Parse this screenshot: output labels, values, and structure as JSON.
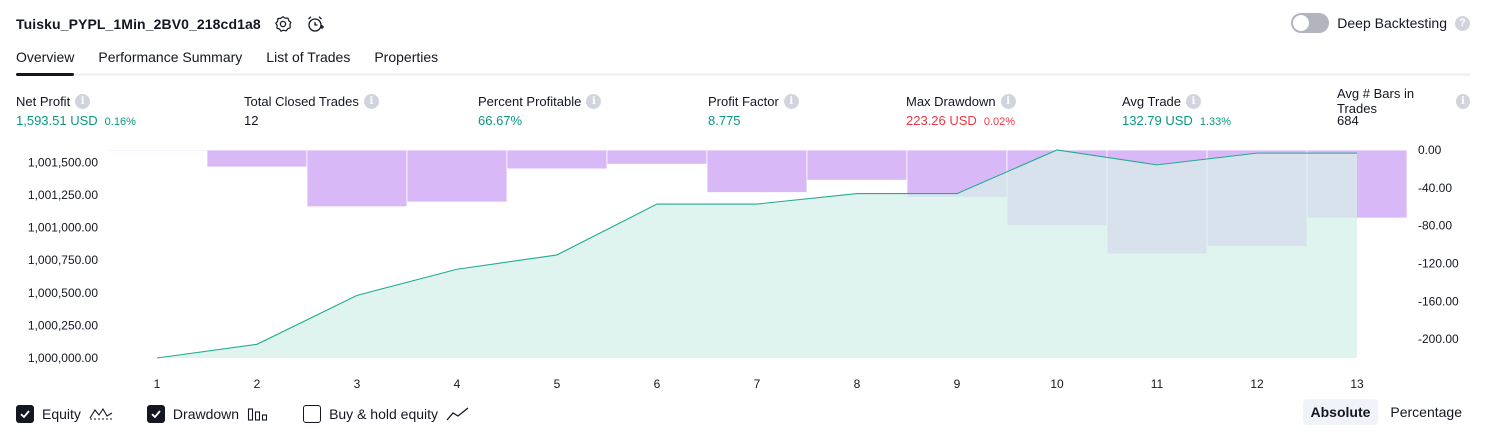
{
  "header": {
    "title": "Tuisku_PYPL_1Min_2BV0_218cd1a8",
    "icons": [
      "gear-icon",
      "alarm-add-icon"
    ]
  },
  "deep_backtesting": {
    "label": "Deep Backtesting",
    "enabled": false,
    "help": "?"
  },
  "tabs": [
    {
      "label": "Overview",
      "active": true
    },
    {
      "label": "Performance Summary",
      "active": false
    },
    {
      "label": "List of Trades",
      "active": false
    },
    {
      "label": "Properties",
      "active": false
    }
  ],
  "metrics": [
    {
      "label": "Net Profit",
      "value": "1,593.51 USD",
      "sub": "0.16%",
      "tone": "pos"
    },
    {
      "label": "Total Closed Trades",
      "value": "12",
      "sub": "",
      "tone": "neutral"
    },
    {
      "label": "Percent Profitable",
      "value": "66.67%",
      "sub": "",
      "tone": "pos"
    },
    {
      "label": "Profit Factor",
      "value": "8.775",
      "sub": "",
      "tone": "pos"
    },
    {
      "label": "Max Drawdown",
      "value": "223.26 USD",
      "sub": "0.02%",
      "tone": "neg"
    },
    {
      "label": "Avg Trade",
      "value": "132.79 USD",
      "sub": "1.33%",
      "tone": "pos"
    },
    {
      "label": "Avg # Bars in Trades",
      "value": "684",
      "sub": "",
      "tone": "neutral"
    }
  ],
  "chart_data": {
    "type": "line",
    "x": [
      1,
      2,
      3,
      4,
      5,
      6,
      7,
      8,
      9,
      10,
      11,
      12,
      13
    ],
    "series": [
      {
        "type": "area",
        "axis": "left",
        "values": [
          1000000,
          1000105,
          1000480,
          1000680,
          1000790,
          1001180,
          1001180,
          1001260,
          1001260,
          1001594,
          1001480,
          1001570,
          1001570
        ]
      },
      {
        "type": "bar",
        "axis": "right",
        "values": [
          0,
          -18,
          -60,
          -55,
          -20,
          -15,
          -45,
          -32,
          -50,
          -80,
          -110,
          -102,
          -72
        ]
      }
    ],
    "left_ticks": [
      "1,000,000.00",
      "1,000,250.00",
      "1,000,500.00",
      "1,000,750.00",
      "1,001,000.00",
      "1,001,250.00",
      "1,001,500.00"
    ],
    "left_tick_values": [
      1000000,
      1000250,
      1000500,
      1000750,
      1001000,
      1001250,
      1001500
    ],
    "right_ticks": [
      "0.00",
      "-40.00",
      "-80.00",
      "-120.00",
      "-160.00",
      "-200.00"
    ],
    "right_tick_values": [
      0,
      -40,
      -80,
      -120,
      -160,
      -200
    ],
    "left_range": [
      1000000,
      1001594
    ],
    "right_range": [
      -220,
      0
    ],
    "colors": {
      "equity_line": "#22ab94",
      "equity_fill": "#d6f0ea",
      "drawdown_fill": "#d9b8f8",
      "drawdown_line": "#b993ee"
    },
    "grid": false
  },
  "legend": [
    {
      "label": "Equity",
      "checked": true,
      "icon": "equity-wave-icon"
    },
    {
      "label": "Drawdown",
      "checked": true,
      "icon": "drawdown-bars-icon"
    },
    {
      "label": "Buy & hold equity",
      "checked": false,
      "icon": "buy-hold-line-icon"
    }
  ],
  "scale": {
    "options": [
      "Absolute",
      "Percentage"
    ],
    "selected": "Absolute"
  }
}
